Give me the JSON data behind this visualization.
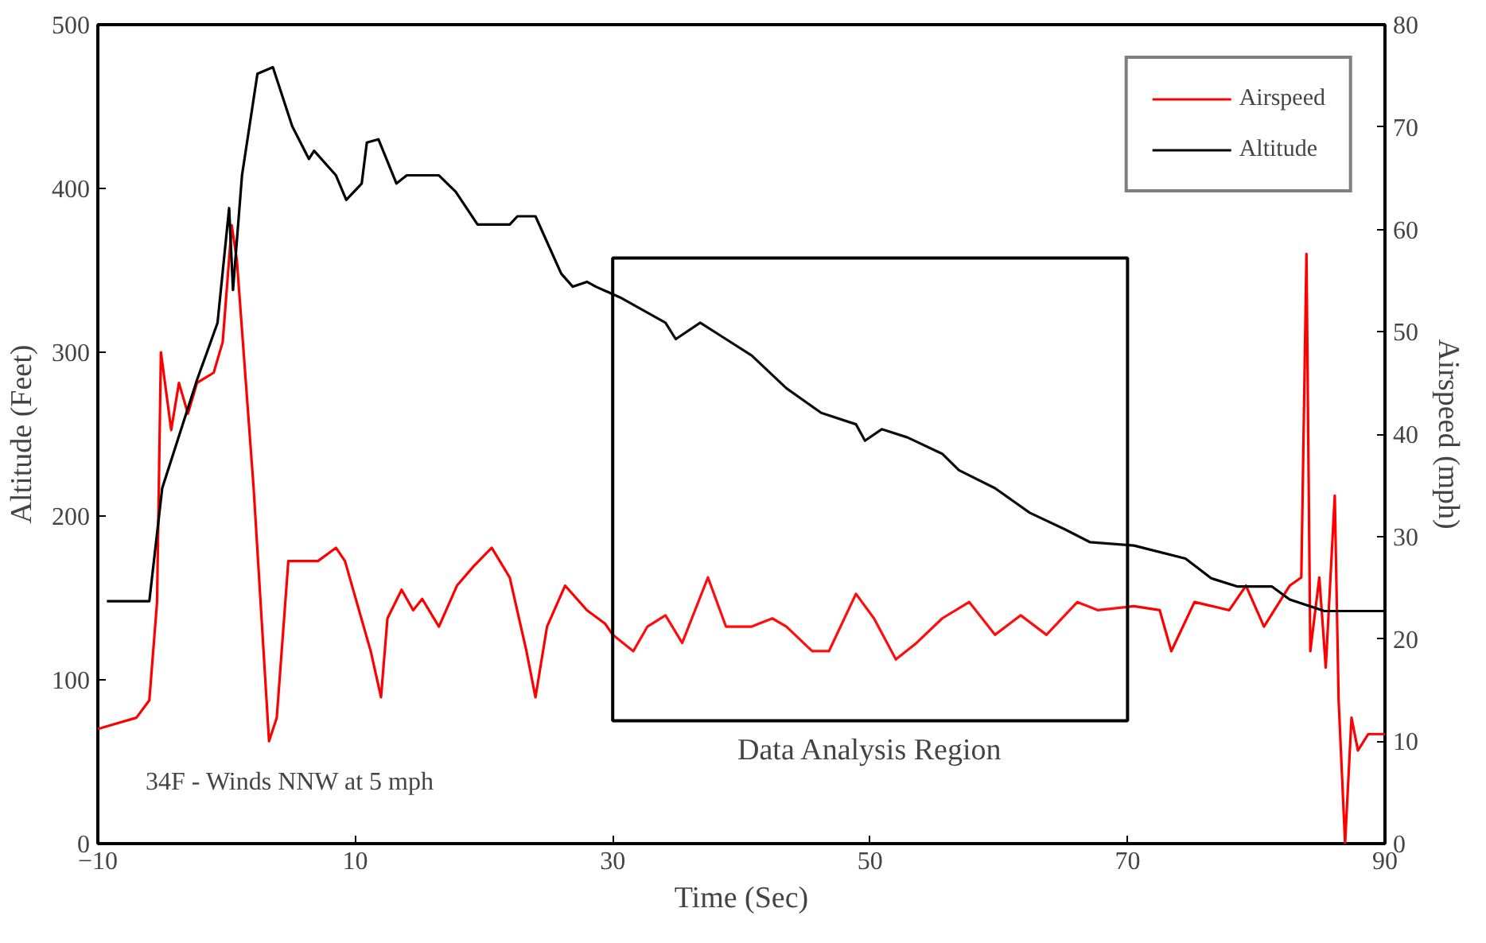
{
  "chart_data": {
    "type": "line",
    "xlabel": "Time (Sec)",
    "ylabel": "Altitude (Feet)",
    "y2label": "Airspeed (mph)",
    "xlim": [
      -10,
      90
    ],
    "xticks": [
      -10,
      10,
      30,
      50,
      70,
      90
    ],
    "ylim": [
      0,
      500
    ],
    "yticks": [
      0,
      100,
      200,
      300,
      400,
      500
    ],
    "y2lim": [
      0,
      80
    ],
    "y2ticks": [
      0,
      10,
      20,
      30,
      40,
      50,
      60,
      70,
      80
    ],
    "grid": false,
    "legend": "top right",
    "marker": "none",
    "line_style": "solid",
    "series": [
      {
        "name": "Airspeed",
        "color": "#ff0000",
        "axis": "y2",
        "x": [
          -10,
          -7.0,
          -6.0,
          -5.4,
          -5.1,
          -4.3,
          -3.7,
          -3.0,
          -2.3,
          -1.0,
          -0.3,
          0.4,
          0.8,
          2.1,
          3.3,
          3.9,
          4.8,
          7.1,
          8.5,
          9.2,
          11.2,
          12.0,
          12.5,
          13.6,
          14.5,
          15.2,
          16.5,
          17.9,
          19.2,
          20.6,
          22.0,
          23.3,
          24.0,
          24.9,
          26.3,
          28.0,
          29.4,
          30.0,
          31.6,
          32.7,
          34.1,
          35.4,
          37.4,
          38.8,
          40.8,
          42.4,
          43.5,
          45.5,
          46.8,
          48.9,
          50.3,
          52.0,
          53.6,
          55.6,
          57.7,
          59.7,
          61.7,
          63.7,
          66.1,
          67.7,
          70.5,
          72.5,
          73.4,
          75.2,
          77.9,
          79.2,
          80.6,
          82.6,
          83.5,
          83.9,
          84.2,
          84.9,
          85.4,
          86.1,
          86.4,
          86.9,
          87.4,
          87.9,
          88.7,
          90
        ],
        "values": [
          11.2,
          12.3,
          14,
          23.6,
          48,
          40.4,
          45,
          42,
          45,
          46,
          49,
          60.4,
          57,
          34.8,
          10,
          12.3,
          27.6,
          27.6,
          28.9,
          27.6,
          18.8,
          14.3,
          22,
          24.8,
          22.8,
          23.9,
          21.2,
          25.2,
          27.1,
          28.9,
          26,
          18.8,
          14.3,
          21.2,
          25.2,
          22.8,
          21.5,
          20.4,
          18.8,
          21.2,
          22.3,
          19.6,
          26,
          21.2,
          21.2,
          22,
          21.2,
          18.8,
          18.8,
          24.4,
          22,
          18,
          19.6,
          22,
          23.6,
          20.4,
          22.3,
          20.4,
          23.6,
          22.8,
          23.2,
          22.8,
          18.8,
          23.6,
          22.8,
          25.2,
          21.2,
          25.2,
          26,
          57.6,
          18.8,
          26,
          17.2,
          34,
          14,
          0,
          12.3,
          9.1,
          10.7,
          10.7
        ]
      },
      {
        "name": "Altitude",
        "color": "#000000",
        "x": [
          -9.3,
          -6.0,
          -5.0,
          -2.3,
          -0.7,
          0.2,
          0.5,
          1.2,
          2.4,
          3.6,
          5.1,
          6.4,
          6.8,
          8.5,
          9.3,
          10.5,
          10.9,
          11.8,
          13.2,
          14.0,
          16.5,
          17.8,
          19.5,
          22.0,
          22.6,
          24.0,
          26.0,
          26.9,
          28.0,
          28.7,
          30.7,
          34.1,
          34.9,
          36.8,
          38.8,
          40.8,
          43.5,
          46.2,
          48.9,
          49.6,
          50.9,
          52.9,
          55.6,
          56.9,
          59.7,
          62.4,
          65.1,
          67.1,
          70.5,
          74.5,
          76.5,
          78.5,
          81.2,
          82.6,
          85.3,
          90
        ],
        "values": [
          148,
          148,
          217,
          283,
          318,
          388,
          338,
          408,
          470,
          474,
          438,
          418,
          423,
          408,
          393,
          403,
          428,
          430,
          403,
          408,
          408,
          398,
          378,
          378,
          383,
          383,
          348,
          340,
          343,
          340,
          333,
          318,
          308,
          318,
          308,
          298,
          278,
          263,
          256,
          246,
          253,
          248,
          238,
          228,
          217,
          202,
          192,
          184,
          182,
          174,
          162,
          157,
          157,
          149,
          142,
          142
        ]
      }
    ],
    "bands": [
      {
        "axis": "x",
        "from": 30,
        "to": 70,
        "label": "Data Analysis Region"
      }
    ],
    "annotations": [
      "34F - Winds NNW at 5 mph"
    ]
  }
}
